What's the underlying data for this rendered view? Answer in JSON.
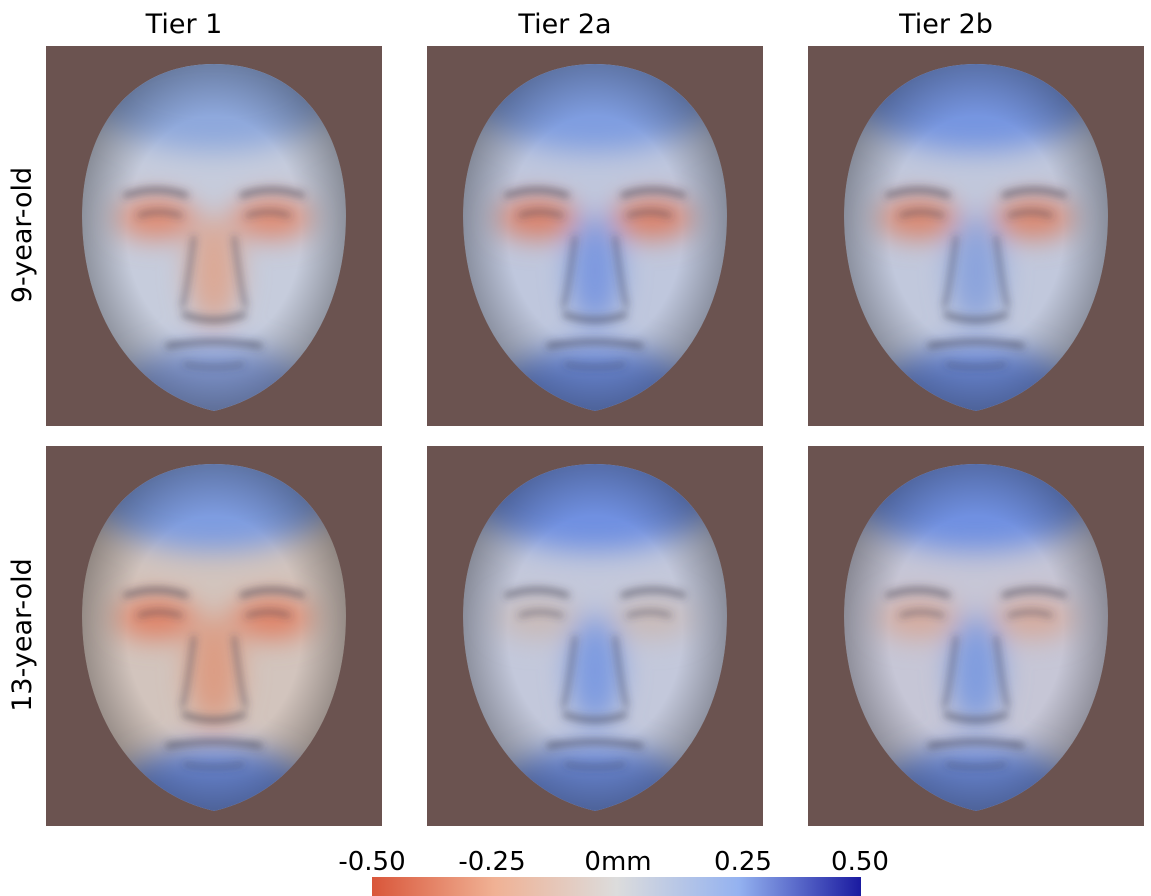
{
  "columns": [
    "Tier 1",
    "Tier 2a",
    "Tier 2b"
  ],
  "rows": [
    "9-year-old",
    "13-year-old"
  ],
  "panels": [
    {
      "name": "panel-9-tier1",
      "row": 0,
      "col": 0,
      "forehead": "#8ea8dc",
      "cheek": "#c6ccdc",
      "eyes": "#e0866b",
      "nose": "#dba894",
      "chin": "#8aa2df"
    },
    {
      "name": "panel-9-tier2a",
      "row": 0,
      "col": 1,
      "forehead": "#7f9de0",
      "cheek": "#bfc7dd",
      "eyes": "#dc7c60",
      "nose": "#7b98df",
      "chin": "#6f8fe0"
    },
    {
      "name": "panel-9-tier2b",
      "row": 0,
      "col": 2,
      "forehead": "#7695e0",
      "cheek": "#c1c8dc",
      "eyes": "#db8266",
      "nose": "#8aa3dc",
      "chin": "#6f8fe0"
    },
    {
      "name": "panel-13-tier1",
      "row": 1,
      "col": 0,
      "forehead": "#7e9ce0",
      "cheek": "#d2c4bd",
      "eyes": "#e07e60",
      "nose": "#dc9b82",
      "chin": "#6f8fe0"
    },
    {
      "name": "panel-13-tier2a",
      "row": 1,
      "col": 1,
      "forehead": "#6f90e1",
      "cheek": "#c3c8db",
      "eyes": "#c9b9b6",
      "nose": "#7c9ae0",
      "chin": "#6f8fe0"
    },
    {
      "name": "panel-13-tier2b",
      "row": 1,
      "col": 2,
      "forehead": "#6f90e1",
      "cheek": "#c6c6d6",
      "eyes": "#d6a99a",
      "nose": "#7e9bdf",
      "chin": "#6f8fe0"
    }
  ],
  "colors": {
    "background": "#6b5350",
    "scale": [
      "#d9563a",
      "#f0b194",
      "#dcdcdc",
      "#94b2f0",
      "#1a1aa0"
    ]
  },
  "scale": {
    "ticks": [
      "-0.50",
      "-0.25",
      "0mm",
      "0.25",
      "0.50"
    ]
  }
}
